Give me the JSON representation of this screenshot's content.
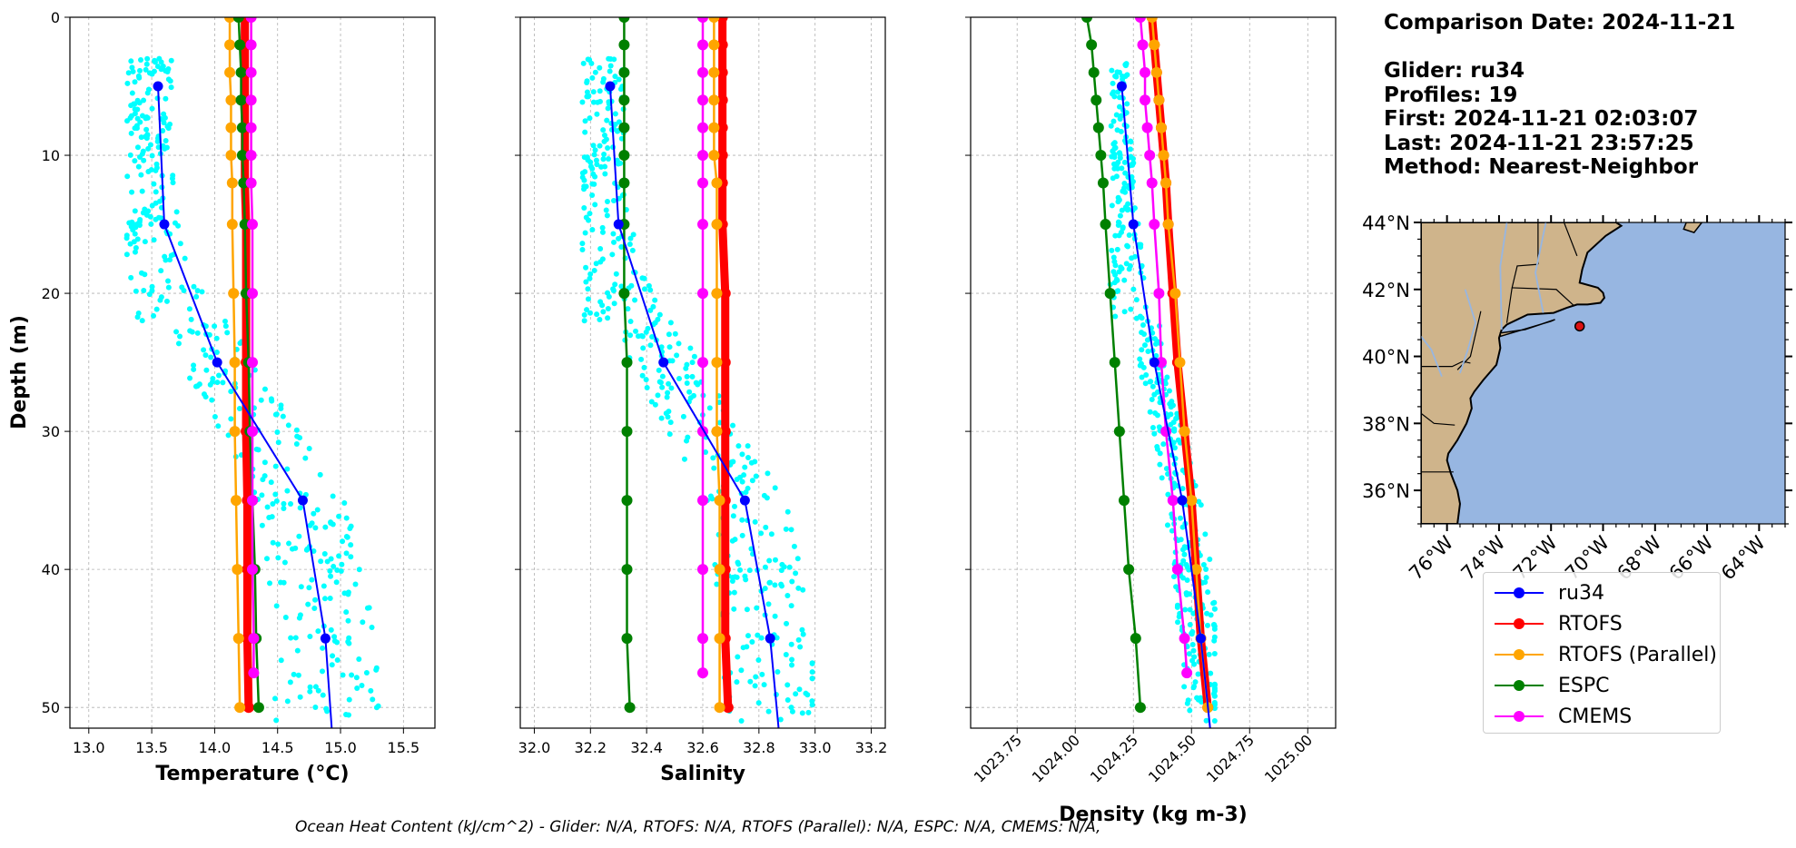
{
  "info": {
    "comparison": "Comparison Date: 2024-11-21",
    "glider": "Glider: ru34",
    "profiles": "Profiles: 19",
    "first": "First: 2024-11-21 02:03:07",
    "last": "Last: 2024-11-21 23:57:25",
    "method": "Method: Nearest-Neighbor"
  },
  "footer": "Ocean Heat Content (kJ/cm^2) - Glider: N/A,  RTOFS: N/A,  RTOFS (Parallel): N/A,  ESPC: N/A,  CMEMS: N/A,",
  "colors": {
    "ru34": "#0000ff",
    "rtofs": "#ff0000",
    "rtofs_parallel": "#ffa500",
    "espc": "#008000",
    "cmems": "#ff00ff",
    "raw": "#00ffff",
    "land": "#cfb48b",
    "ocean": "#97b6e1",
    "grid": "#b0b0b0"
  },
  "legend": [
    {
      "name": "ru34",
      "color": "#0000ff"
    },
    {
      "name": "RTOFS",
      "color": "#ff0000"
    },
    {
      "name": "RTOFS (Parallel)",
      "color": "#ffa500"
    },
    {
      "name": "ESPC",
      "color": "#008000"
    },
    {
      "name": "CMEMS",
      "color": "#ff00ff"
    }
  ],
  "chart_data": [
    {
      "type": "line",
      "xlabel": "Temperature (°C)",
      "ylabel": "Depth (m)",
      "xlim": [
        12.85,
        15.75
      ],
      "ylim": [
        51.5,
        0
      ],
      "xticks": [
        13.0,
        13.5,
        14.0,
        14.5,
        15.0,
        15.5
      ],
      "yticks": [
        0,
        10,
        20,
        30,
        40,
        50
      ],
      "grid": true,
      "raw_glider": {
        "name": "ru34 raw profiles",
        "depth_range": [
          3,
          51
        ],
        "value_range": [
          13.3,
          15.3
        ]
      },
      "series": [
        {
          "name": "ru34",
          "depth": [
            5,
            15,
            25,
            35,
            45,
            51.5
          ],
          "values": [
            13.55,
            13.6,
            14.02,
            14.7,
            14.88,
            14.93
          ]
        },
        {
          "name": "RTOFS",
          "depth": [
            0,
            2,
            4,
            6,
            8,
            10,
            12,
            15,
            20,
            25,
            30,
            35,
            40,
            45,
            50
          ],
          "values": [
            14.24,
            14.24,
            14.24,
            14.24,
            14.24,
            14.24,
            14.24,
            14.25,
            14.25,
            14.25,
            14.25,
            14.26,
            14.26,
            14.26,
            14.27
          ]
        },
        {
          "name": "RTOFS (Parallel)",
          "depth": [
            0,
            2,
            4,
            6,
            8,
            10,
            12,
            15,
            20,
            25,
            30,
            35,
            40,
            45,
            50
          ],
          "values": [
            14.12,
            14.12,
            14.12,
            14.13,
            14.13,
            14.13,
            14.14,
            14.14,
            14.15,
            14.16,
            14.16,
            14.17,
            14.18,
            14.19,
            14.2
          ]
        },
        {
          "name": "ESPC",
          "depth": [
            0,
            2,
            4,
            6,
            8,
            10,
            12,
            15,
            20,
            25,
            30,
            35,
            40,
            45,
            50
          ],
          "values": [
            14.19,
            14.2,
            14.21,
            14.21,
            14.22,
            14.22,
            14.23,
            14.24,
            14.25,
            14.27,
            14.28,
            14.3,
            14.32,
            14.33,
            14.35
          ]
        },
        {
          "name": "CMEMS",
          "depth": [
            0,
            2,
            4,
            6,
            8,
            10,
            12,
            15,
            20,
            25,
            30,
            35,
            40,
            45,
            47.5
          ],
          "values": [
            14.29,
            14.29,
            14.29,
            14.29,
            14.29,
            14.29,
            14.29,
            14.3,
            14.3,
            14.3,
            14.3,
            14.3,
            14.3,
            14.31,
            14.31
          ]
        }
      ]
    },
    {
      "type": "line",
      "xlabel": "Salinity",
      "xlim": [
        31.95,
        33.25
      ],
      "ylim": [
        51.5,
        0
      ],
      "xticks": [
        32.0,
        32.2,
        32.4,
        32.6,
        32.8,
        33.0,
        33.2
      ],
      "yticks": [
        0,
        10,
        20,
        30,
        40,
        50
      ],
      "grid": true,
      "raw_glider": {
        "name": "ru34 raw profiles",
        "depth_range": [
          3,
          51
        ],
        "value_range": [
          32.17,
          32.99
        ]
      },
      "series": [
        {
          "name": "ru34",
          "depth": [
            5,
            15,
            25,
            35,
            45,
            51.5
          ],
          "values": [
            32.27,
            32.3,
            32.46,
            32.75,
            32.84,
            32.87
          ]
        },
        {
          "name": "RTOFS",
          "depth": [
            0,
            2,
            4,
            6,
            8,
            10,
            12,
            15,
            20,
            25,
            30,
            35,
            40,
            45,
            50
          ],
          "values": [
            32.67,
            32.67,
            32.67,
            32.67,
            32.67,
            32.67,
            32.67,
            32.67,
            32.68,
            32.68,
            32.68,
            32.68,
            32.68,
            32.68,
            32.69
          ]
        },
        {
          "name": "RTOFS (Parallel)",
          "depth": [
            0,
            2,
            4,
            6,
            8,
            10,
            12,
            15,
            20,
            25,
            30,
            35,
            40,
            45,
            50
          ],
          "values": [
            32.64,
            32.64,
            32.64,
            32.64,
            32.64,
            32.64,
            32.65,
            32.65,
            32.65,
            32.65,
            32.65,
            32.66,
            32.66,
            32.66,
            32.66
          ]
        },
        {
          "name": "ESPC",
          "depth": [
            0,
            2,
            4,
            6,
            8,
            10,
            12,
            15,
            20,
            25,
            30,
            35,
            40,
            45,
            50
          ],
          "values": [
            32.32,
            32.32,
            32.32,
            32.32,
            32.32,
            32.32,
            32.32,
            32.32,
            32.32,
            32.33,
            32.33,
            32.33,
            32.33,
            32.33,
            32.34
          ]
        },
        {
          "name": "CMEMS",
          "depth": [
            0,
            2,
            4,
            6,
            8,
            10,
            12,
            15,
            20,
            25,
            30,
            35,
            40,
            45,
            47.5
          ],
          "values": [
            32.6,
            32.6,
            32.6,
            32.6,
            32.6,
            32.6,
            32.6,
            32.6,
            32.6,
            32.6,
            32.6,
            32.6,
            32.6,
            32.6,
            32.6
          ]
        }
      ]
    },
    {
      "type": "line",
      "xlabel": "Density (kg m-3)",
      "xlim": [
        1023.55,
        1025.12
      ],
      "ylim": [
        51.5,
        0
      ],
      "xticks": [
        1023.75,
        1024.0,
        1024.25,
        1024.5,
        1024.75,
        1025.0
      ],
      "xtick_labels": [
        "1023.75",
        "1024.00",
        "1024.25",
        "1024.50",
        "1024.75",
        "1025.00"
      ],
      "yticks": [
        0,
        10,
        20,
        30,
        40,
        50
      ],
      "grid": true,
      "raw_glider": {
        "name": "ru34 raw profiles",
        "depth_range": [
          3,
          51
        ],
        "value_range": [
          1024.15,
          1024.6
        ]
      },
      "series": [
        {
          "name": "ru34",
          "depth": [
            5,
            15,
            25,
            35,
            45,
            51.5
          ],
          "values": [
            1024.2,
            1024.25,
            1024.34,
            1024.46,
            1024.54,
            1024.58
          ]
        },
        {
          "name": "RTOFS",
          "depth": [
            0,
            2,
            4,
            6,
            8,
            10,
            12,
            15,
            20,
            25,
            30,
            35,
            40,
            45,
            50
          ],
          "values": [
            1024.33,
            1024.34,
            1024.35,
            1024.36,
            1024.37,
            1024.38,
            1024.39,
            1024.4,
            1024.42,
            1024.44,
            1024.47,
            1024.5,
            1024.52,
            1024.54,
            1024.57
          ]
        },
        {
          "name": "RTOFS (Parallel)",
          "depth": [
            0,
            2,
            4,
            6,
            8,
            10,
            12,
            15,
            20,
            25,
            30,
            35,
            40,
            45,
            50
          ],
          "values": [
            1024.33,
            1024.34,
            1024.35,
            1024.36,
            1024.37,
            1024.38,
            1024.39,
            1024.4,
            1024.43,
            1024.45,
            1024.47,
            1024.5,
            1024.52,
            1024.54,
            1024.57
          ]
        },
        {
          "name": "ESPC",
          "depth": [
            0,
            2,
            4,
            6,
            8,
            10,
            12,
            15,
            20,
            25,
            30,
            35,
            40,
            45,
            50
          ],
          "values": [
            1024.05,
            1024.07,
            1024.08,
            1024.09,
            1024.1,
            1024.11,
            1024.12,
            1024.13,
            1024.15,
            1024.17,
            1024.19,
            1024.21,
            1024.23,
            1024.26,
            1024.28
          ]
        },
        {
          "name": "CMEMS",
          "depth": [
            0,
            2,
            4,
            6,
            8,
            10,
            12,
            15,
            20,
            25,
            30,
            35,
            40,
            45,
            47.5
          ],
          "values": [
            1024.28,
            1024.29,
            1024.3,
            1024.3,
            1024.31,
            1024.32,
            1024.33,
            1024.34,
            1024.36,
            1024.37,
            1024.39,
            1024.42,
            1024.44,
            1024.47,
            1024.48
          ]
        }
      ]
    },
    {
      "type": "map",
      "lon_range": [
        -77,
        -63
      ],
      "lat_range": [
        35,
        44
      ],
      "lat_ticks": [
        "36°N",
        "38°N",
        "40°N",
        "42°N",
        "44°N"
      ],
      "lon_ticks": [
        "76°W",
        "74°W",
        "72°W",
        "70°W",
        "68°W",
        "66°W",
        "64°W"
      ],
      "marker": {
        "name": "glider location",
        "lon": -70.9,
        "lat": 40.9
      }
    }
  ]
}
